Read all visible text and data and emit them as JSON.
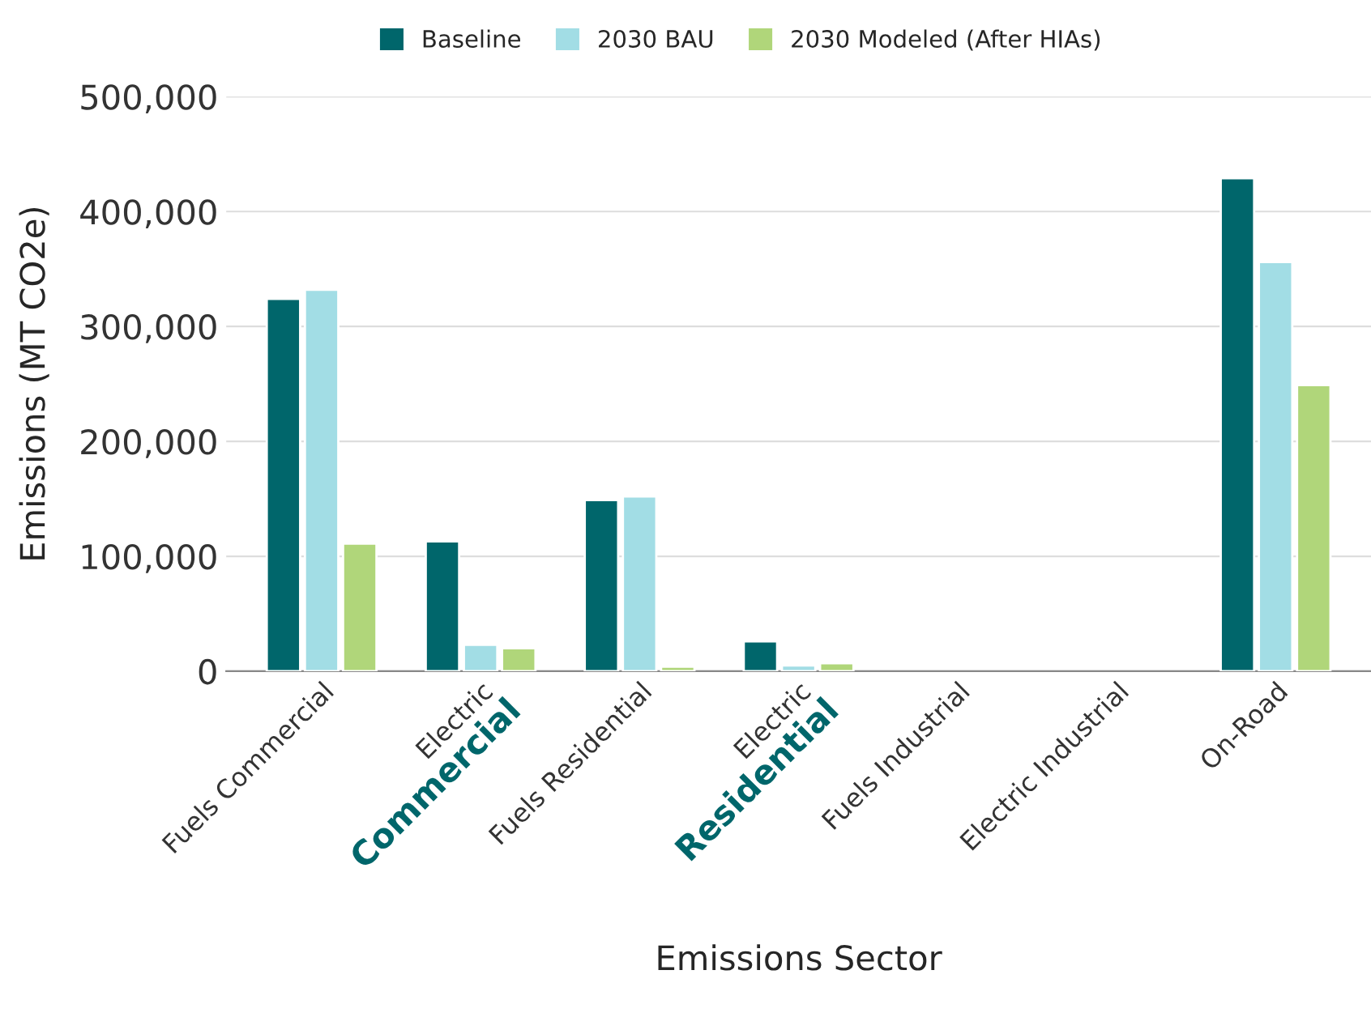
{
  "chart_data": {
    "type": "bar",
    "xlabel": "Emissions Sector",
    "ylabel": "Emissions (MT CO2e)",
    "categories": [
      "Fuels Commercial",
      "Electric",
      "Fuels Residential",
      "Electric",
      "Fuels Industrial",
      "Electric Industrial",
      "On-Road"
    ],
    "series": [
      {
        "name": "Baseline",
        "color": "#00666b",
        "values": [
          324000,
          113000,
          149000,
          26000,
          null,
          null,
          429000
        ]
      },
      {
        "name": "2030 BAU",
        "color": "#a2dde5",
        "values": [
          332000,
          23000,
          152000,
          5000,
          null,
          null,
          356000
        ]
      },
      {
        "name": "2030 Modeled (After HIAs)",
        "color": "#b0d67a",
        "values": [
          111000,
          20000,
          4000,
          7000,
          null,
          null,
          249000
        ]
      }
    ],
    "annotations": [
      "Commercial",
      "Residential"
    ],
    "ylim": [
      0,
      500000
    ],
    "yticks": [
      {
        "value": 0,
        "label": "0"
      },
      {
        "value": 100000,
        "label": "100,000"
      },
      {
        "value": 200000,
        "label": "200,000"
      },
      {
        "value": 300000,
        "label": "300,000"
      },
      {
        "value": 400000,
        "label": "400,000"
      },
      {
        "value": 500000,
        "label": "500,000"
      }
    ],
    "grid": "y",
    "legend": "top"
  }
}
